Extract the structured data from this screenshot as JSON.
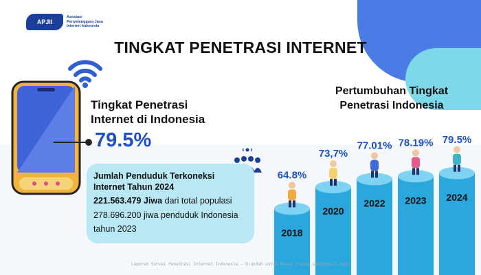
{
  "logo": {
    "mark": "APJII",
    "text": "Asosiasi Penyelenggara Jasa Internet Indonesia"
  },
  "title": "TINGKAT PENETRASI INTERNET",
  "penetration": {
    "label": "Tingkat Penetrasi Internet di Indonesia",
    "value": "79.5%"
  },
  "info": {
    "title": "Jumlah Penduduk Terkoneksi Internet Tahun 2024",
    "line1_bold": "221.563.479 Jiwa",
    "line1_rest": " dari total populasi",
    "line2": "278.696.200 jiwa penduduk Indonesia",
    "line3": "tahun 2023"
  },
  "growth_title": "Pertumbuhan Tingkat Penetrasi Indonesia",
  "chart_data": {
    "type": "bar",
    "categories": [
      "2018",
      "2020",
      "2022",
      "2023",
      "2024"
    ],
    "values": [
      64.8,
      73.7,
      77.01,
      78.19,
      79.5
    ],
    "labels": [
      "64.8%",
      "73,7%",
      "77.01%",
      "78.19%",
      "79.5%"
    ],
    "title": "",
    "xlabel": "",
    "ylabel": ""
  },
  "footer": "Laporan Survei Penetrasi Internet Indonesia - Diunduh untuk Resko (resko.soko@gmail.com)",
  "colors": {
    "accent_blue": "#1e4fc2",
    "cylinder_body": "#2aa7dc",
    "cylinder_top": "#7fd3f2",
    "info_box": "#b9e7f3",
    "dark_navy": "#1b3f9a"
  }
}
